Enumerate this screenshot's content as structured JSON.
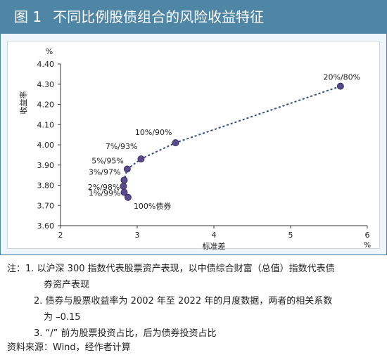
{
  "figure": {
    "number": "图 1",
    "title": "不同比例股债组合的风险收益特征"
  },
  "chart_data": {
    "type": "line",
    "xlabel": "标准差",
    "ylabel": "收益率",
    "x_unit": "%",
    "y_unit": "%",
    "xlim": [
      2,
      6
    ],
    "ylim": [
      3.6,
      4.4
    ],
    "x_ticks": [
      "2",
      "3",
      "4",
      "5",
      "6"
    ],
    "y_ticks": [
      "3.60",
      "3.70",
      "3.80",
      "3.90",
      "4.00",
      "4.10",
      "4.20",
      "4.30",
      "4.40"
    ],
    "grid": false,
    "series": [
      {
        "color": "#2e4a80",
        "points": [
          {
            "label": "100%债券",
            "x": 2.88,
            "y": 3.74
          },
          {
            "label": "1%/99%",
            "x": 2.83,
            "y": 3.765
          },
          {
            "label": "2%/98%",
            "x": 2.82,
            "y": 3.795
          },
          {
            "label": "3%/97%",
            "x": 2.83,
            "y": 3.825
          },
          {
            "label": "5%/95%",
            "x": 2.87,
            "y": 3.88
          },
          {
            "label": "7%/93%",
            "x": 3.05,
            "y": 3.93
          },
          {
            "label": "10%/90%",
            "x": 3.5,
            "y": 4.01
          },
          {
            "label": "20%/80%",
            "x": 5.65,
            "y": 4.29
          }
        ]
      }
    ]
  },
  "notes": {
    "prefix": "注：",
    "items": [
      "1. 以沪深 300 指数代表股票资产表现，以中债综合财富（总值）指数代表债",
      "券资产表现",
      "2. 债券与股票收益率为 2002 年至 2022 年的月度数据，两者的相关系数",
      "为 –0.15",
      "3. “/” 前为股票投资占比，后为债券投资占比"
    ]
  },
  "source": "资料来源：Wind，经作者计算"
}
